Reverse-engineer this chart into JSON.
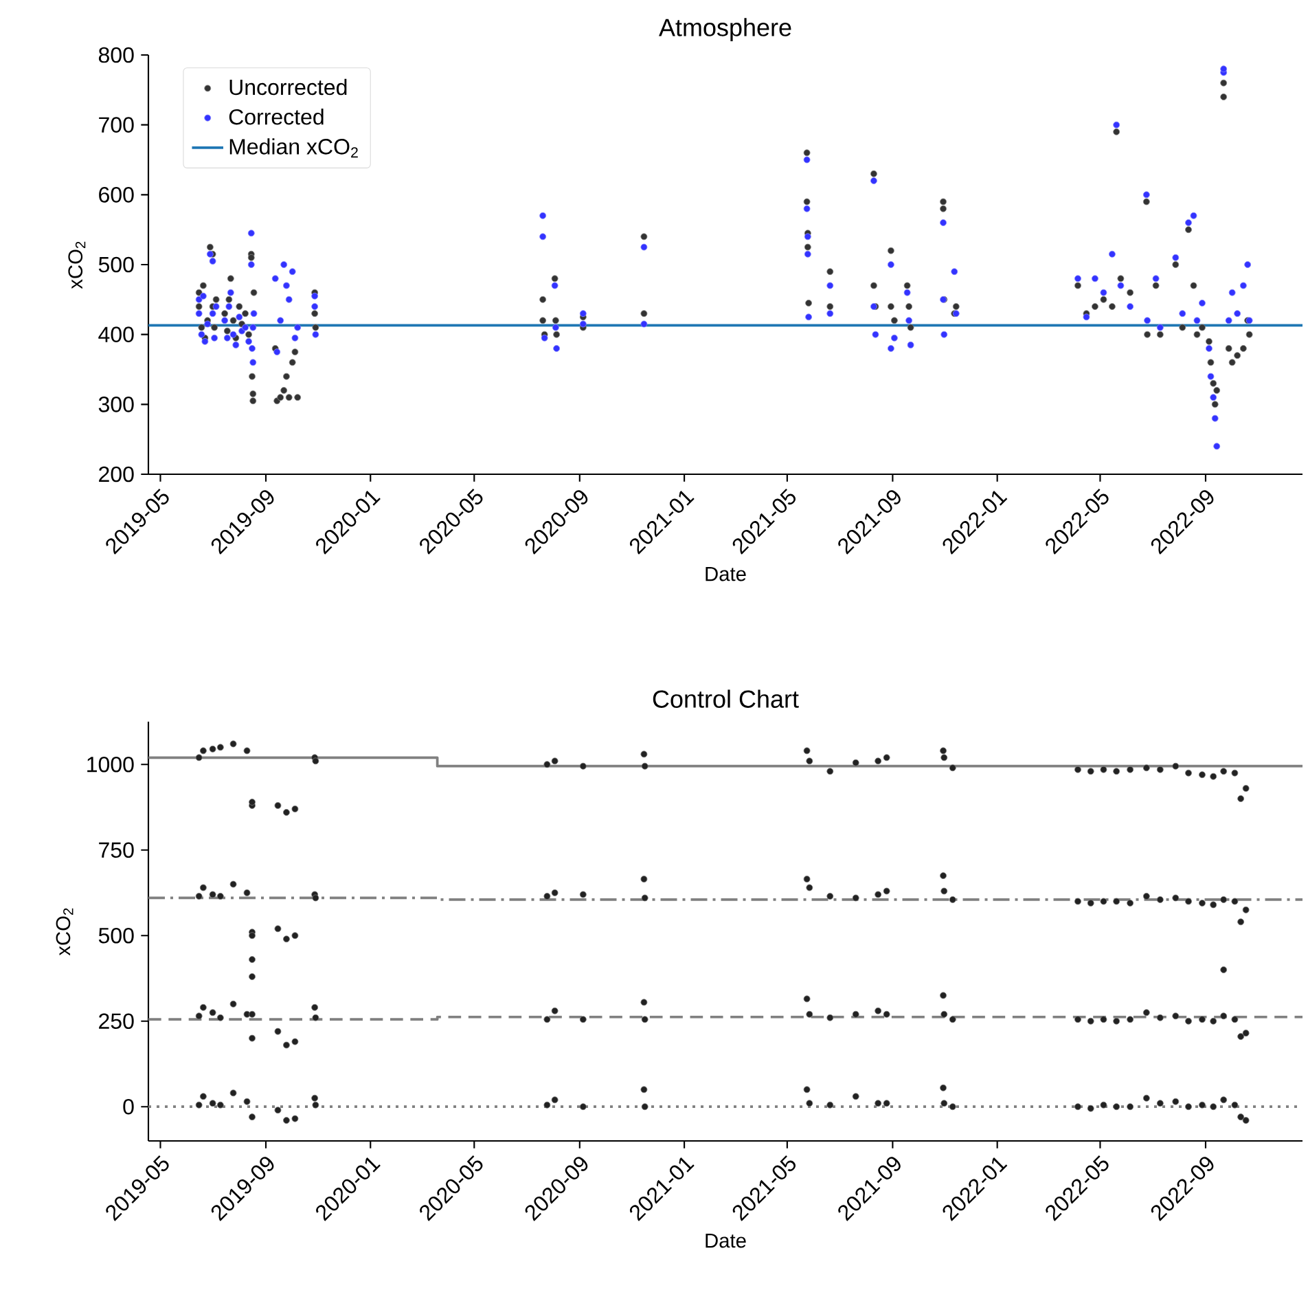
{
  "chart_data": [
    {
      "type": "scatter",
      "title": "Atmosphere",
      "xlabel": "Date",
      "ylabel": "xCO$_{2}$",
      "xlim": [
        "2019-04-17",
        "2022-12-23"
      ],
      "xticks": [
        "2019-05",
        "2019-09",
        "2020-01",
        "2020-05",
        "2020-09",
        "2021-01",
        "2021-05",
        "2021-09",
        "2022-01",
        "2022-05",
        "2022-09"
      ],
      "ylim": [
        200,
        800
      ],
      "yticks": [
        200,
        300,
        400,
        500,
        600,
        700,
        800
      ],
      "legend": "top left",
      "x": [
        "2019-06-15",
        "2019-06-15",
        "2019-06-18",
        "2019-06-20",
        "2019-06-22",
        "2019-06-25",
        "2019-06-28",
        "2019-07-01",
        "2019-07-01",
        "2019-07-03",
        "2019-07-05",
        "2019-07-15",
        "2019-07-18",
        "2019-07-20",
        "2019-07-22",
        "2019-07-25",
        "2019-07-28",
        "2019-08-01",
        "2019-08-04",
        "2019-08-08",
        "2019-08-12",
        "2019-08-15",
        "2019-08-15",
        "2019-08-16",
        "2019-08-17",
        "2019-08-17",
        "2019-08-18",
        "2019-09-12",
        "2019-09-14",
        "2019-09-18",
        "2019-09-22",
        "2019-09-25",
        "2019-09-28",
        "2019-10-02",
        "2019-10-05",
        "2019-10-08",
        "2019-10-28",
        "2019-10-28",
        "2019-10-29",
        "2020-07-20",
        "2020-07-20",
        "2020-07-22",
        "2020-08-03",
        "2020-08-04",
        "2020-08-05",
        "2020-09-05",
        "2020-09-05",
        "2020-11-15",
        "2020-11-15",
        "2021-05-24",
        "2021-05-24",
        "2021-05-25",
        "2021-05-25",
        "2021-05-26",
        "2021-06-20",
        "2021-06-20",
        "2021-08-10",
        "2021-08-10",
        "2021-08-12",
        "2021-08-30",
        "2021-08-30",
        "2021-09-03",
        "2021-09-18",
        "2021-09-20",
        "2021-09-22",
        "2021-10-30",
        "2021-10-30",
        "2021-10-31",
        "2021-11-12",
        "2021-11-14",
        "2022-04-05",
        "2022-04-15",
        "2022-04-25",
        "2022-05-05",
        "2022-05-15",
        "2022-05-20",
        "2022-05-25",
        "2022-06-05",
        "2022-06-24",
        "2022-06-25",
        "2022-07-05",
        "2022-07-10",
        "2022-07-28",
        "2022-08-05",
        "2022-08-12",
        "2022-08-18",
        "2022-08-22",
        "2022-08-28",
        "2022-09-05",
        "2022-09-07",
        "2022-09-10",
        "2022-09-12",
        "2022-09-14",
        "2022-09-22",
        "2022-09-22",
        "2022-09-28",
        "2022-10-02",
        "2022-10-08",
        "2022-10-15",
        "2022-10-20",
        "2022-10-22"
      ],
      "series": [
        {
          "name": "Uncorrected",
          "color": "#333333",
          "marker": "circle",
          "values": [
            440,
            460,
            410,
            470,
            395,
            420,
            525,
            515,
            440,
            410,
            450,
            430,
            405,
            450,
            480,
            420,
            395,
            440,
            415,
            430,
            400,
            515,
            510,
            340,
            305,
            315,
            460,
            380,
            305,
            310,
            320,
            340,
            310,
            360,
            375,
            310,
            460,
            430,
            410,
            450,
            420,
            400,
            480,
            420,
            400,
            425,
            410,
            540,
            430,
            660,
            590,
            545,
            525,
            445,
            490,
            440,
            630,
            470,
            440,
            520,
            440,
            420,
            470,
            440,
            410,
            590,
            580,
            450,
            430,
            440,
            470,
            430,
            440,
            450,
            440,
            690,
            480,
            460,
            590,
            400,
            470,
            400,
            500,
            410,
            550,
            470,
            400,
            410,
            390,
            360,
            330,
            300,
            320,
            760,
            740,
            380,
            360,
            370,
            380,
            420,
            400
          ]
        },
        {
          "name": "Corrected",
          "color": "#3333ff",
          "marker": "circle",
          "values": [
            430,
            450,
            400,
            455,
            390,
            415,
            515,
            505,
            430,
            395,
            440,
            420,
            395,
            440,
            460,
            400,
            385,
            425,
            405,
            410,
            390,
            545,
            500,
            380,
            360,
            410,
            430,
            480,
            375,
            420,
            500,
            470,
            450,
            490,
            395,
            410,
            455,
            440,
            400,
            570,
            540,
            395,
            470,
            410,
            380,
            430,
            415,
            525,
            415,
            650,
            580,
            540,
            515,
            425,
            470,
            430,
            620,
            440,
            400,
            500,
            380,
            395,
            460,
            420,
            385,
            560,
            450,
            400,
            490,
            430,
            480,
            425,
            480,
            460,
            515,
            700,
            470,
            440,
            600,
            420,
            480,
            410,
            510,
            430,
            560,
            570,
            420,
            445,
            380,
            340,
            310,
            280,
            240,
            775,
            780,
            420,
            460,
            430,
            470,
            500,
            420
          ]
        },
        {
          "name": "Median xCO$_{2}$",
          "type": "line",
          "color": "#1f77b4",
          "x": [
            "2019-04-17",
            "2022-12-23"
          ],
          "values": [
            413,
            413
          ]
        }
      ]
    },
    {
      "type": "scatter",
      "title": "Control Chart",
      "xlabel": "Date",
      "ylabel": "xCO$_{2}$",
      "xlim": [
        "2019-04-17",
        "2022-12-23"
      ],
      "xticks": [
        "2019-05",
        "2019-09",
        "2020-01",
        "2020-05",
        "2020-09",
        "2021-01",
        "2021-05",
        "2021-09",
        "2022-01",
        "2022-05",
        "2022-09"
      ],
      "ylim": [
        -100,
        1125
      ],
      "yticks": [
        0,
        250,
        500,
        750,
        1000
      ],
      "series": [
        {
          "color": "#222222",
          "marker": "circle",
          "x": [
            "2019-06-15",
            "2019-06-15",
            "2019-06-15",
            "2019-06-15",
            "2019-06-20",
            "2019-06-20",
            "2019-06-20",
            "2019-06-20",
            "2019-07-01",
            "2019-07-01",
            "2019-07-01",
            "2019-07-01",
            "2019-07-10",
            "2019-07-10",
            "2019-07-10",
            "2019-07-10",
            "2019-07-25",
            "2019-07-25",
            "2019-07-25",
            "2019-07-25",
            "2019-08-10",
            "2019-08-10",
            "2019-08-10",
            "2019-08-10",
            "2019-08-16",
            "2019-08-16",
            "2019-08-16",
            "2019-08-16",
            "2019-08-16",
            "2019-08-16",
            "2019-08-16",
            "2019-08-16",
            "2019-08-16",
            "2019-09-15",
            "2019-09-15",
            "2019-09-15",
            "2019-09-15",
            "2019-09-25",
            "2019-09-25",
            "2019-09-25",
            "2019-09-25",
            "2019-10-05",
            "2019-10-05",
            "2019-10-05",
            "2019-10-05",
            "2019-10-28",
            "2019-10-28",
            "2019-10-28",
            "2019-10-28",
            "2019-10-29",
            "2019-10-29",
            "2019-10-29",
            "2019-10-29",
            "2020-07-25",
            "2020-07-25",
            "2020-07-25",
            "2020-07-25",
            "2020-08-03",
            "2020-08-03",
            "2020-08-03",
            "2020-08-03",
            "2020-09-05",
            "2020-09-05",
            "2020-09-05",
            "2020-09-05",
            "2020-11-15",
            "2020-11-15",
            "2020-11-15",
            "2020-11-15",
            "2020-11-16",
            "2020-11-16",
            "2020-11-16",
            "2020-11-16",
            "2021-05-24",
            "2021-05-24",
            "2021-05-24",
            "2021-05-24",
            "2021-05-27",
            "2021-05-27",
            "2021-05-27",
            "2021-05-27",
            "2021-06-20",
            "2021-06-20",
            "2021-06-20",
            "2021-06-20",
            "2021-07-20",
            "2021-07-20",
            "2021-07-20",
            "2021-07-20",
            "2021-08-15",
            "2021-08-15",
            "2021-08-15",
            "2021-08-15",
            "2021-08-25",
            "2021-08-25",
            "2021-08-25",
            "2021-08-25",
            "2021-10-30",
            "2021-10-30",
            "2021-10-30",
            "2021-10-30",
            "2021-10-31",
            "2021-10-31",
            "2021-10-31",
            "2021-10-31",
            "2021-11-10",
            "2021-11-10",
            "2021-11-10",
            "2021-11-10",
            "2022-04-05",
            "2022-04-05",
            "2022-04-05",
            "2022-04-05",
            "2022-04-20",
            "2022-04-20",
            "2022-04-20",
            "2022-04-20",
            "2022-05-05",
            "2022-05-05",
            "2022-05-05",
            "2022-05-05",
            "2022-05-20",
            "2022-05-20",
            "2022-05-20",
            "2022-05-20",
            "2022-06-05",
            "2022-06-05",
            "2022-06-05",
            "2022-06-05",
            "2022-06-24",
            "2022-06-24",
            "2022-06-24",
            "2022-06-24",
            "2022-07-10",
            "2022-07-10",
            "2022-07-10",
            "2022-07-10",
            "2022-07-28",
            "2022-07-28",
            "2022-07-28",
            "2022-07-28",
            "2022-08-12",
            "2022-08-12",
            "2022-08-12",
            "2022-08-12",
            "2022-08-28",
            "2022-08-28",
            "2022-08-28",
            "2022-08-28",
            "2022-09-10",
            "2022-09-10",
            "2022-09-10",
            "2022-09-10",
            "2022-09-22",
            "2022-09-22",
            "2022-09-22",
            "2022-09-22",
            "2022-10-05",
            "2022-10-05",
            "2022-10-05",
            "2022-10-05",
            "2022-09-22",
            "2022-10-12",
            "2022-10-12",
            "2022-10-12",
            "2022-10-12",
            "2022-10-18",
            "2022-10-18",
            "2022-10-18",
            "2022-10-18"
          ],
          "values": [
            1020,
            615,
            265,
            5,
            1040,
            640,
            290,
            30,
            1045,
            620,
            275,
            10,
            1050,
            615,
            260,
            5,
            1060,
            650,
            300,
            40,
            1040,
            625,
            270,
            15,
            880,
            890,
            510,
            500,
            430,
            380,
            270,
            200,
            -30,
            880,
            520,
            220,
            -10,
            860,
            490,
            180,
            -40,
            870,
            500,
            190,
            -35,
            1020,
            620,
            290,
            25,
            1010,
            610,
            260,
            5,
            1000,
            615,
            255,
            5,
            1010,
            625,
            280,
            20,
            995,
            620,
            255,
            0,
            1030,
            665,
            305,
            50,
            995,
            610,
            255,
            0,
            1040,
            665,
            315,
            50,
            1010,
            640,
            270,
            10,
            980,
            615,
            260,
            5,
            1005,
            610,
            270,
            30,
            1010,
            620,
            280,
            10,
            1020,
            630,
            270,
            10,
            1040,
            675,
            325,
            55,
            1020,
            630,
            270,
            10,
            990,
            605,
            255,
            0,
            985,
            600,
            255,
            0,
            980,
            595,
            250,
            -5,
            985,
            600,
            255,
            5,
            980,
            600,
            250,
            0,
            985,
            595,
            255,
            0,
            990,
            615,
            275,
            25,
            985,
            605,
            260,
            10,
            995,
            610,
            265,
            15,
            975,
            600,
            250,
            0,
            970,
            595,
            255,
            5,
            965,
            590,
            250,
            0,
            980,
            605,
            265,
            20,
            975,
            600,
            255,
            5,
            400,
            900,
            540,
            205,
            -30,
            930,
            575,
            215,
            -40
          ]
        },
        {
          "type": "line",
          "color": "#808080",
          "line_style": "solid",
          "x": [
            "2019-04-17",
            "2020-03-19",
            "2020-03-19",
            "2022-12-23"
          ],
          "values": [
            1020,
            1020,
            995,
            995
          ]
        },
        {
          "type": "line",
          "color": "#808080",
          "line_style": "dashdot",
          "x": [
            "2019-04-17",
            "2020-03-19",
            "2020-03-19",
            "2022-12-23"
          ],
          "values": [
            610,
            610,
            605,
            605
          ]
        },
        {
          "type": "line",
          "color": "#808080",
          "line_style": "dashed",
          "x": [
            "2019-04-17",
            "2020-03-19",
            "2020-03-19",
            "2022-12-23"
          ],
          "values": [
            255,
            255,
            262,
            262
          ]
        },
        {
          "type": "line",
          "color": "#808080",
          "line_style": "dotted",
          "x": [
            "2019-04-17",
            "2020-03-19",
            "2020-03-19",
            "2022-12-23"
          ],
          "values": [
            0,
            0,
            0,
            0
          ]
        }
      ]
    }
  ]
}
